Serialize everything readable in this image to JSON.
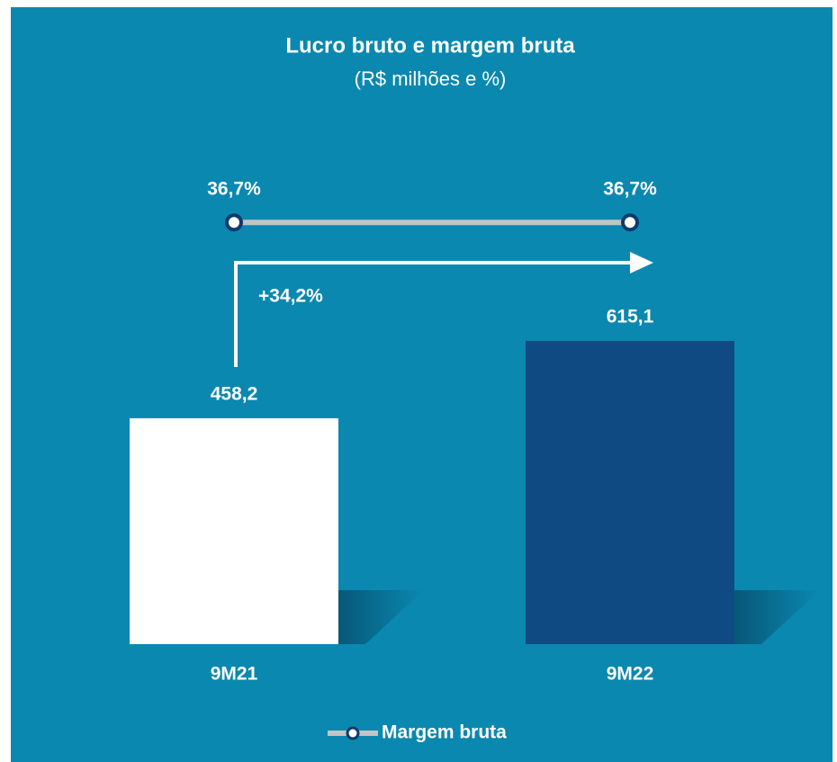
{
  "chart_data": {
    "type": "bar",
    "title": "Lucro bruto e margem bruta",
    "subtitle": "(R$ milhões e %)",
    "categories": [
      "9M21",
      "9M22"
    ],
    "series": [
      {
        "type": "bar",
        "values": [
          458.2,
          615.1
        ],
        "value_labels": [
          "458,2",
          "615,1"
        ],
        "colors": [
          "#ffffff",
          "#0f4a82"
        ]
      },
      {
        "type": "line",
        "name": "Margem bruta",
        "axis": "y2",
        "values": [
          36.7,
          36.7
        ],
        "value_labels": [
          "36,7%",
          "36,7%"
        ],
        "color": "#c4c4c4",
        "marker_color": "#0f3a6e"
      }
    ],
    "annotations": [
      {
        "text": "+34,2%"
      }
    ],
    "ylim": [
      0,
      1000
    ],
    "y2lim": [
      0,
      42.9
    ],
    "legend": "bottom"
  }
}
